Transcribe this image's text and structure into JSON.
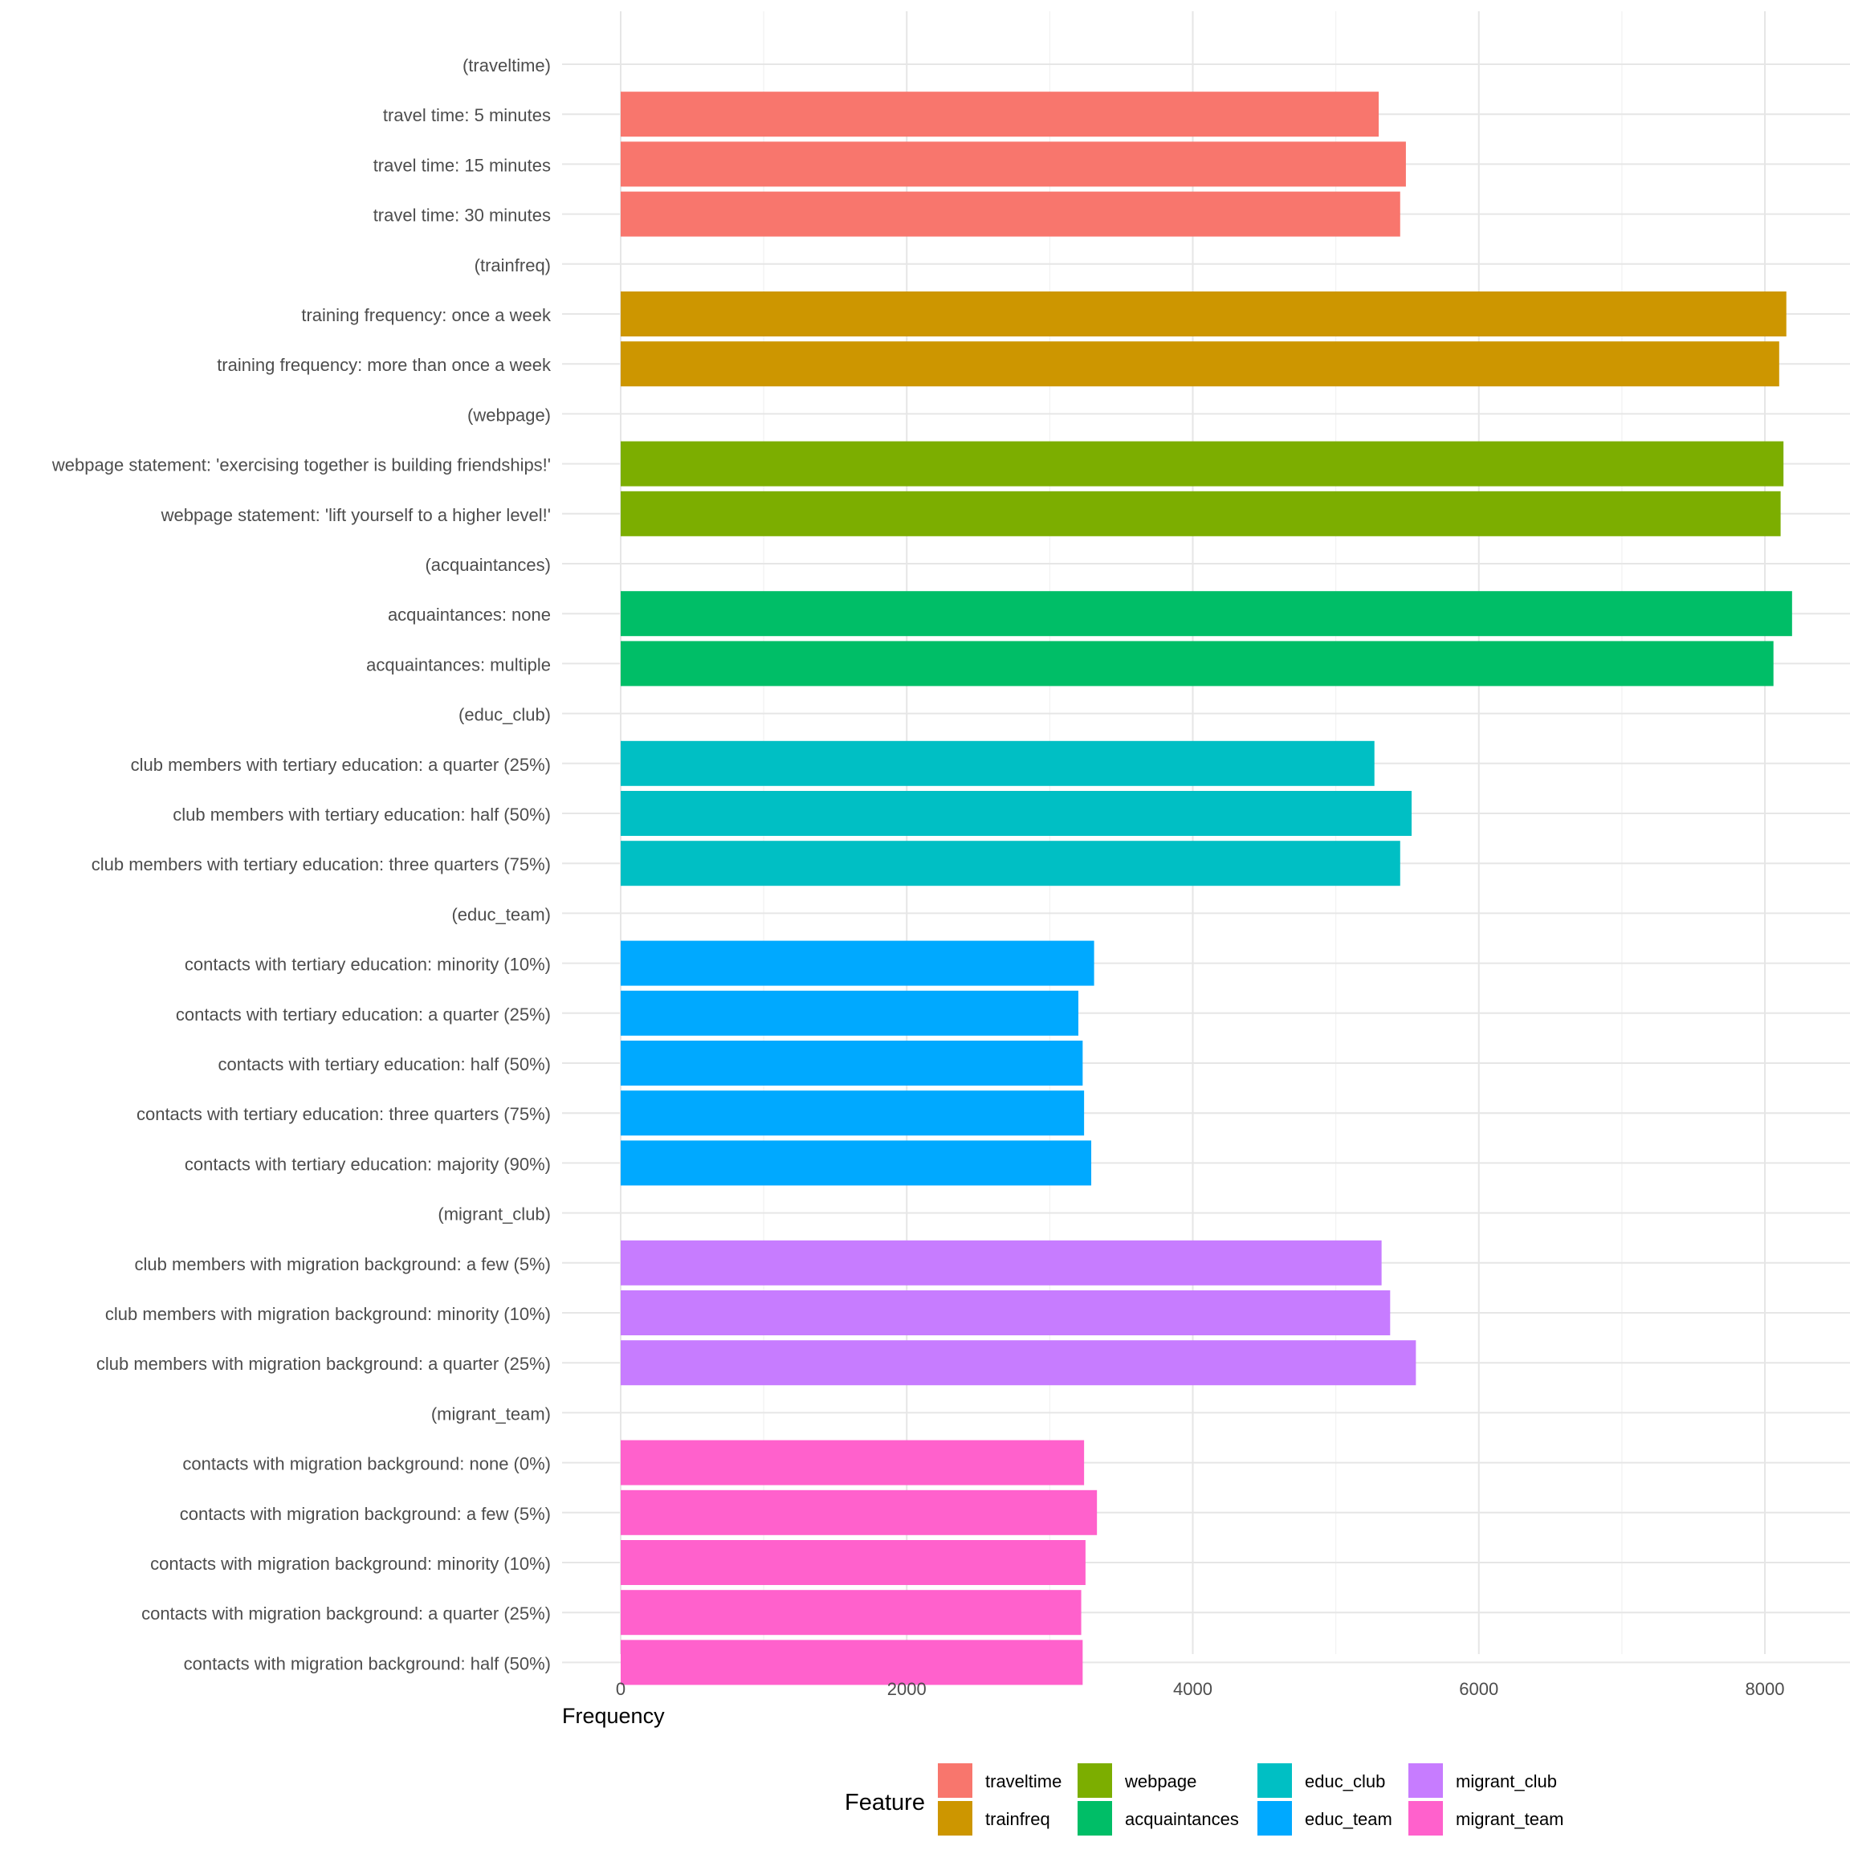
{
  "chart_data": {
    "type": "bar",
    "orientation": "horizontal",
    "xlabel": "Frequency",
    "ylabel": "",
    "xlim": [
      -400,
      8500
    ],
    "xticks": [
      0,
      2000,
      4000,
      6000,
      8000
    ],
    "grid": true,
    "legend": {
      "title": "Feature",
      "placement": "bottom",
      "entries": [
        {
          "name": "traveltime",
          "color": "#F8766D"
        },
        {
          "name": "trainfreq",
          "color": "#CD9600"
        },
        {
          "name": "webpage",
          "color": "#7CAE00"
        },
        {
          "name": "acquaintances",
          "color": "#00BE67"
        },
        {
          "name": "educ_club",
          "color": "#00BFC4"
        },
        {
          "name": "educ_team",
          "color": "#00A9FF"
        },
        {
          "name": "migrant_club",
          "color": "#C77CFF"
        },
        {
          "name": "migrant_team",
          "color": "#FF61CC"
        }
      ]
    },
    "rows": [
      {
        "label": "(traveltime)",
        "feature": "traveltime",
        "value": null
      },
      {
        "label": "travel time: 5 minutes",
        "feature": "traveltime",
        "value": 5300
      },
      {
        "label": "travel time: 15 minutes",
        "feature": "traveltime",
        "value": 5490
      },
      {
        "label": "travel time: 30 minutes",
        "feature": "traveltime",
        "value": 5450
      },
      {
        "label": "(trainfreq)",
        "feature": "trainfreq",
        "value": null
      },
      {
        "label": "training frequency: once a week",
        "feature": "trainfreq",
        "value": 8150
      },
      {
        "label": "training frequency: more than once a week",
        "feature": "trainfreq",
        "value": 8100
      },
      {
        "label": "(webpage)",
        "feature": "webpage",
        "value": null
      },
      {
        "label": "webpage statement: 'exercising together is building friendships!'",
        "feature": "webpage",
        "value": 8130
      },
      {
        "label": "webpage statement: 'lift yourself to a higher level!'",
        "feature": "webpage",
        "value": 8110
      },
      {
        "label": "(acquaintances)",
        "feature": "acquaintances",
        "value": null
      },
      {
        "label": "acquaintances: none",
        "feature": "acquaintances",
        "value": 8190
      },
      {
        "label": "acquaintances: multiple",
        "feature": "acquaintances",
        "value": 8060
      },
      {
        "label": "(educ_club)",
        "feature": "educ_club",
        "value": null
      },
      {
        "label": "club members with tertiary education: a quarter (25%)",
        "feature": "educ_club",
        "value": 5270
      },
      {
        "label": "club members with tertiary education: half (50%)",
        "feature": "educ_club",
        "value": 5530
      },
      {
        "label": "club members with tertiary education: three quarters (75%)",
        "feature": "educ_club",
        "value": 5450
      },
      {
        "label": "(educ_team)",
        "feature": "educ_team",
        "value": null
      },
      {
        "label": "contacts with tertiary education: minority (10%)",
        "feature": "educ_team",
        "value": 3310
      },
      {
        "label": "contacts with tertiary education: a quarter (25%)",
        "feature": "educ_team",
        "value": 3200
      },
      {
        "label": "contacts with tertiary education: half (50%)",
        "feature": "educ_team",
        "value": 3230
      },
      {
        "label": "contacts with tertiary education: three quarters (75%)",
        "feature": "educ_team",
        "value": 3240
      },
      {
        "label": "contacts with tertiary education: majority (90%)",
        "feature": "educ_team",
        "value": 3290
      },
      {
        "label": "(migrant_club)",
        "feature": "migrant_club",
        "value": null
      },
      {
        "label": "club members with migration background: a few (5%)",
        "feature": "migrant_club",
        "value": 5320
      },
      {
        "label": "club members with migration background: minority (10%)",
        "feature": "migrant_club",
        "value": 5380
      },
      {
        "label": "club members with migration background: a quarter (25%)",
        "feature": "migrant_club",
        "value": 5560
      },
      {
        "label": "(migrant_team)",
        "feature": "migrant_team",
        "value": null
      },
      {
        "label": "contacts with migration background: none (0%)",
        "feature": "migrant_team",
        "value": 3240
      },
      {
        "label": "contacts with migration background: a few (5%)",
        "feature": "migrant_team",
        "value": 3330
      },
      {
        "label": "contacts with migration background: minority (10%)",
        "feature": "migrant_team",
        "value": 3250
      },
      {
        "label": "contacts with migration background: a quarter (25%)",
        "feature": "migrant_team",
        "value": 3220
      },
      {
        "label": "contacts with migration background: half (50%)",
        "feature": "migrant_team",
        "value": 3230
      }
    ]
  }
}
